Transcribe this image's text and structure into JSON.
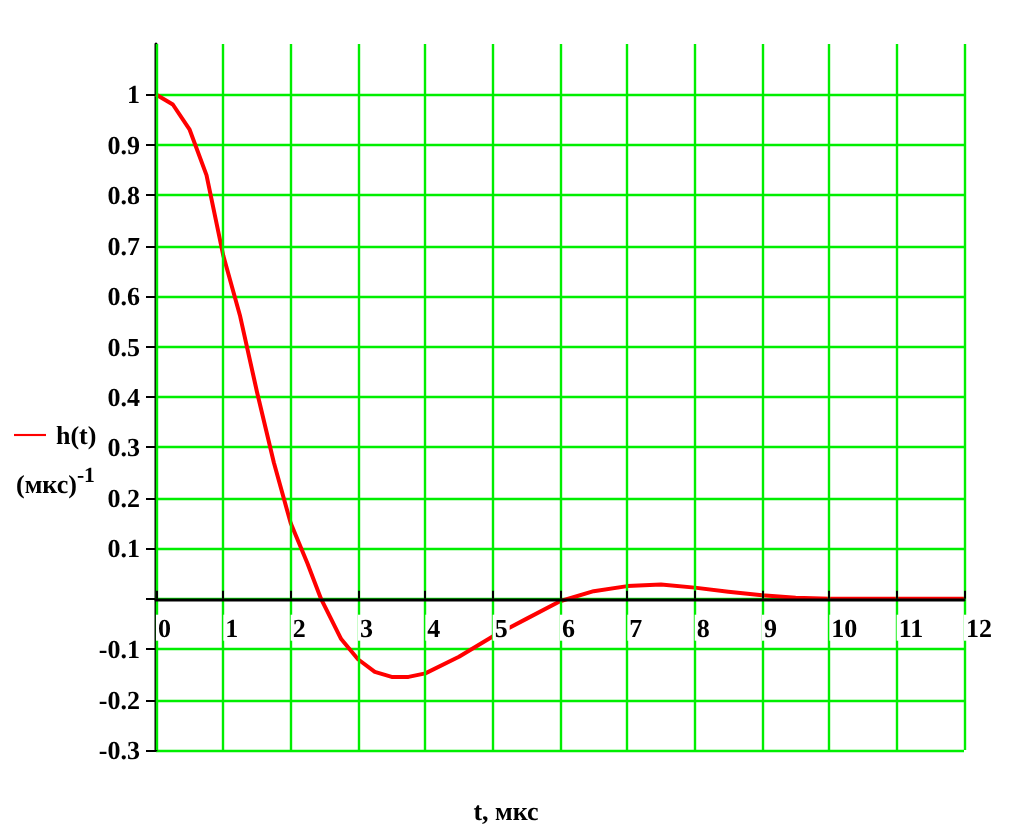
{
  "chart_data": {
    "type": "line",
    "xlabel": "t, мкс",
    "ylabel": "(мкс)$^{-1}$",
    "x": [
      0,
      0.25,
      0.5,
      0.75,
      1,
      1.25,
      1.5,
      1.75,
      2,
      2.25,
      2.45,
      2.75,
      3,
      3.25,
      3.5,
      3.75,
      4,
      4.5,
      5,
      5.5,
      6,
      6.5,
      7,
      7.5,
      8,
      8.5,
      9,
      9.5,
      10,
      11,
      12
    ],
    "series": [
      {
        "name": "h(t)",
        "color": "#ff0000",
        "values": [
          1.0,
          0.98,
          0.93,
          0.84,
          0.68,
          0.56,
          0.41,
          0.27,
          0.15,
          0.07,
          0.0,
          -0.08,
          -0.12,
          -0.145,
          -0.155,
          -0.155,
          -0.148,
          -0.115,
          -0.075,
          -0.04,
          -0.005,
          0.015,
          0.025,
          0.028,
          0.022,
          0.014,
          0.007,
          0.002,
          0.0,
          0.0,
          0.0
        ]
      }
    ],
    "xlim": [
      0,
      12
    ],
    "xticks": [
      0,
      1,
      2,
      3,
      4,
      5,
      6,
      7,
      8,
      9,
      10,
      11,
      12
    ],
    "ylim": [
      -0.3,
      1.1
    ],
    "yticks": [
      -0.3,
      -0.2,
      -0.1,
      {
        "value": 0,
        "label": null
      },
      0.1,
      0.2,
      0.3,
      0.4,
      0.5,
      0.6,
      0.7,
      0.8,
      0.9,
      1
    ],
    "grid": true,
    "legend": "left",
    "marker": "none",
    "line_style": "solid"
  }
}
